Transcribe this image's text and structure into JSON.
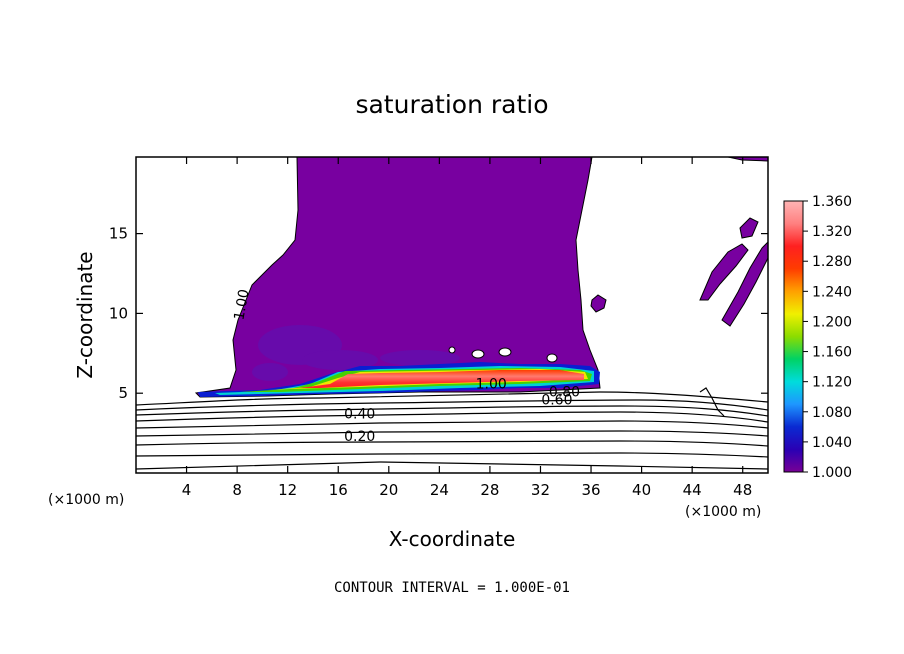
{
  "chart_data": {
    "type": "heatmap",
    "title": "saturation ratio",
    "xlabel": "X-coordinate",
    "ylabel": "Z-coordinate",
    "x_unit": "(×1000 m)",
    "z_unit": "(×1000 m)",
    "xlim": [
      0,
      50
    ],
    "ylim": [
      0,
      19.8
    ],
    "x_ticks": [
      4,
      8,
      12,
      16,
      20,
      24,
      28,
      32,
      36,
      40,
      44,
      48
    ],
    "y_ticks": [
      5,
      10,
      15
    ],
    "colorbar": {
      "range": [
        1.0,
        1.36
      ],
      "ticks": [
        "1.360",
        "1.320",
        "1.280",
        "1.240",
        "1.200",
        "1.160",
        "1.120",
        "1.080",
        "1.040",
        "1.000"
      ],
      "colors": [
        "#780096",
        "#2a00b4",
        "#0a2ad2",
        "#1e96ff",
        "#00dcdc",
        "#00d264",
        "#8cdc00",
        "#f0f000",
        "#ffa000",
        "#ff3c00",
        "#ff2020",
        "#ff8080",
        "#ffb4b4"
      ]
    },
    "contour_labels": [
      {
        "text": "1.00",
        "x": 8.7,
        "z": 10.5,
        "rotate": -80
      },
      {
        "text": "1.00",
        "x": 28.1,
        "z": 5.3
      },
      {
        "text": "0.80",
        "x": 33.9,
        "z": 4.8
      },
      {
        "text": "0.60",
        "x": 33.3,
        "z": 4.3
      },
      {
        "text": "0.40",
        "x": 17.7,
        "z": 3.4
      },
      {
        "text": "0.20",
        "x": 17.7,
        "z": 2.0
      }
    ],
    "footer": "CONTOUR INTERVAL = 1.000E-01"
  }
}
